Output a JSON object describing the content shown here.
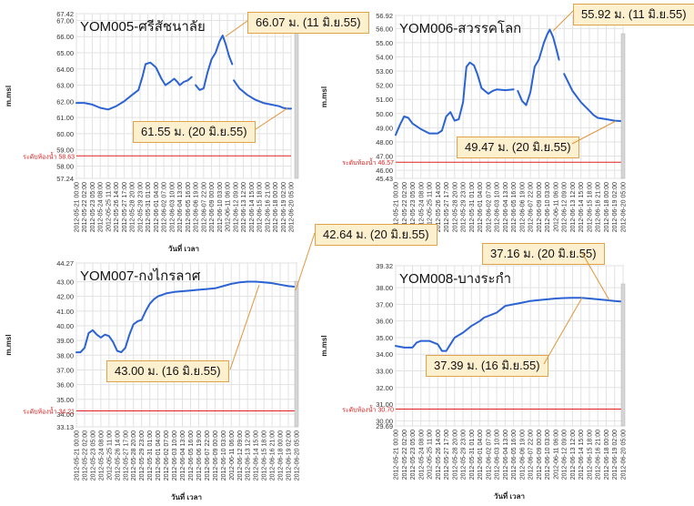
{
  "chart_data": [
    {
      "type": "line",
      "title": "YOM005-ศรีสัชนาลัย",
      "xlabel": "วันที่ เวลา",
      "ylabel": "m.msl",
      "ylim": [
        57.24,
        67.42
      ],
      "yticks": [
        "67.42",
        "67.00",
        "66.00",
        "65.00",
        "64.00",
        "63.00",
        "62.00",
        "61.00",
        "60.00",
        "59.00",
        "58.00",
        "57.24"
      ],
      "reference_line": {
        "label": "ระดับท้องน้ำ 58.63",
        "value": 58.63
      },
      "xtick_labels": [
        "2012-05-21 00:00",
        "2012-05-22 02:00",
        "2012-05-23 05:00",
        "2012-05-24 08:00",
        "2012-05-25 11:00",
        "2012-05-26 14:00",
        "2012-05-27 17:00",
        "2012-05-28 20:00",
        "2012-05-29 23:00",
        "2012-05-31 01:00",
        "2012-06-01 04:00",
        "2012-06-02 07:00",
        "2012-06-03 10:00",
        "2012-06-04 13:00",
        "2012-06-05 16:00",
        "2012-06-06 19:00",
        "2012-06-07 22:00",
        "2012-06-09 00:00",
        "2012-06-10 03:00",
        "2012-06-11 06:00",
        "2012-06-12 09:00",
        "2012-06-13 12:00",
        "2012-06-14 15:00",
        "2012-06-15 18:00",
        "2012-06-16 21:00",
        "2012-06-18 00:00",
        "2012-06-19 02:00",
        "2012-06-20 05:00"
      ],
      "series": [
        {
          "color": "#2b63d4",
          "segments": [
            [
              [
                0,
                61.9
              ],
              [
                1,
                61.9
              ],
              [
                2,
                61.8
              ],
              [
                3,
                61.6
              ],
              [
                4,
                61.5
              ],
              [
                5,
                61.7
              ],
              [
                6,
                62.0
              ],
              [
                7,
                62.4
              ],
              [
                7.8,
                62.7
              ],
              [
                8.3,
                63.5
              ],
              [
                8.7,
                64.3
              ],
              [
                9.3,
                64.4
              ],
              [
                10,
                64.1
              ],
              [
                10.7,
                63.4
              ],
              [
                11.2,
                63.0
              ],
              [
                11.8,
                63.2
              ],
              [
                12.3,
                63.4
              ],
              [
                12.7,
                63.2
              ],
              [
                13,
                63.0
              ],
              [
                13.5,
                63.2
              ],
              [
                14,
                63.3
              ],
              [
                14.5,
                63.5
              ]
            ],
            [
              [
                15,
                63.0
              ],
              [
                15.5,
                62.7
              ],
              [
                16,
                62.8
              ],
              [
                16.5,
                63.8
              ],
              [
                17,
                64.6
              ],
              [
                17.5,
                65.0
              ],
              [
                18,
                65.7
              ],
              [
                18.4,
                66.07
              ],
              [
                18.8,
                65.5
              ],
              [
                19.2,
                64.8
              ],
              [
                19.6,
                64.3
              ]
            ],
            [
              [
                19.8,
                63.3
              ],
              [
                20.5,
                62.8
              ],
              [
                21.5,
                62.4
              ],
              [
                22.5,
                62.1
              ],
              [
                23.5,
                61.9
              ],
              [
                24.5,
                61.8
              ],
              [
                25.5,
                61.7
              ],
              [
                26,
                61.6
              ],
              [
                26.5,
                61.55
              ],
              [
                27,
                61.55
              ]
            ]
          ]
        }
      ],
      "annotations": [
        {
          "text": "66.07 ม. (11 มิ.ย.55)"
        },
        {
          "text": "61.55 ม. (20 มิ.ย.55)"
        }
      ]
    },
    {
      "type": "line",
      "title": "YOM006-สวรรคโลก",
      "xlabel": "",
      "ylabel": "m.msl",
      "ylim": [
        45.43,
        56.92
      ],
      "yticks": [
        "56.92",
        "56.00",
        "55.00",
        "54.00",
        "53.00",
        "52.00",
        "51.00",
        "50.00",
        "49.00",
        "48.00",
        "47.00",
        "46.00",
        "45.43"
      ],
      "reference_line": {
        "label": "ระดับท้องน้ำ 46.57",
        "value": 46.57
      },
      "xtick_labels": [
        "2012-05-21 00:00",
        "2012-05-22 02:00",
        "2012-05-23 05:00",
        "2012-05-24 08:00",
        "2012-05-25 11:00",
        "2012-05-26 14:00",
        "2012-05-27 17:00",
        "2012-05-28 20:00",
        "2012-05-29 23:00",
        "2012-05-31 01:00",
        "2012-06-01 04:00",
        "2012-06-02 07:00",
        "2012-06-03 10:00",
        "2012-06-04 13:00",
        "2012-06-05 16:00",
        "2012-06-06 19:00",
        "2012-06-07 22:00",
        "2012-06-09 00:00",
        "2012-06-10 03:00",
        "2012-06-11 06:00",
        "2012-06-12 09:00",
        "2012-06-13 12:00",
        "2012-06-14 15:00",
        "2012-06-15 18:00",
        "2012-06-16 21:00",
        "2012-06-18 00:00",
        "2012-06-19 02:00",
        "2012-06-20 05:00"
      ],
      "series": [
        {
          "color": "#2b63d4",
          "segments": [
            [
              [
                0,
                48.5
              ],
              [
                0.5,
                49.2
              ],
              [
                1,
                49.8
              ],
              [
                1.5,
                49.7
              ],
              [
                2,
                49.3
              ],
              [
                3,
                48.9
              ],
              [
                4,
                48.6
              ],
              [
                5,
                48.6
              ],
              [
                5.5,
                48.8
              ],
              [
                6,
                49.8
              ],
              [
                6.5,
                50.1
              ],
              [
                7,
                49.5
              ],
              [
                7.5,
                49.6
              ],
              [
                8,
                50.8
              ],
              [
                8.4,
                53.3
              ],
              [
                8.8,
                53.6
              ],
              [
                9.3,
                53.4
              ],
              [
                9.7,
                52.8
              ],
              [
                10.2,
                51.8
              ],
              [
                11,
                51.4
              ],
              [
                11.5,
                51.6
              ],
              [
                12,
                51.7
              ],
              [
                13,
                51.65
              ],
              [
                14,
                51.7
              ]
            ],
            [
              [
                14.5,
                51.6
              ],
              [
                15,
                50.9
              ],
              [
                15.5,
                50.6
              ],
              [
                16,
                51.5
              ],
              [
                16.5,
                53.3
              ],
              [
                17,
                53.8
              ],
              [
                17.6,
                55.0
              ],
              [
                18,
                55.6
              ],
              [
                18.3,
                55.92
              ],
              [
                18.7,
                55.4
              ],
              [
                19.1,
                54.5
              ],
              [
                19.4,
                53.8
              ]
            ],
            [
              [
                20,
                52.8
              ],
              [
                20.5,
                52.2
              ],
              [
                21,
                51.6
              ],
              [
                22,
                50.8
              ],
              [
                23,
                50.2
              ],
              [
                23.5,
                49.9
              ],
              [
                24,
                49.7
              ],
              [
                25,
                49.6
              ],
              [
                26,
                49.5
              ],
              [
                27,
                49.47
              ]
            ]
          ]
        }
      ],
      "annotations": [
        {
          "text": "55.92 ม. (11 มิ.ย.55)"
        },
        {
          "text": "49.47 ม. (20 มิ.ย.55)"
        }
      ]
    },
    {
      "type": "line",
      "title": "YOM007-กงไกรลาศ",
      "xlabel": "วันที่ เวลา",
      "ylabel": "m.msl",
      "ylim": [
        33.13,
        44.27
      ],
      "yticks": [
        "44.27",
        "43.00",
        "42.00",
        "41.00",
        "40.00",
        "39.00",
        "38.00",
        "37.00",
        "36.00",
        "35.00",
        "34.00",
        "33.13"
      ],
      "reference_line": {
        "label": "ระดับท้องน้ำ 34.21",
        "value": 34.21
      },
      "xtick_labels": [
        "2012-05-21 00:00",
        "2012-05-22 02:00",
        "2012-05-23 05:00",
        "2012-05-24 08:00",
        "2012-05-25 11:00",
        "2012-05-26 14:00",
        "2012-05-27 17:00",
        "2012-05-28 20:00",
        "2012-05-29 23:00",
        "2012-05-31 01:00",
        "2012-06-01 04:00",
        "2012-06-02 07:00",
        "2012-06-03 10:00",
        "2012-06-04 13:00",
        "2012-06-05 16:00",
        "2012-06-06 19:00",
        "2012-06-07 22:00",
        "2012-06-09 00:00",
        "2012-06-10 03:00",
        "2012-06-11 06:00",
        "2012-06-12 09:00",
        "2012-06-13 12:00",
        "2012-06-14 15:00",
        "2012-06-15 18:00",
        "2012-06-16 21:00",
        "2012-06-18 00:00",
        "2012-06-19 02:00",
        "2012-06-20 05:00"
      ],
      "series": [
        {
          "color": "#2b63d4",
          "segments": [
            [
              [
                0,
                38.2
              ],
              [
                0.5,
                38.2
              ],
              [
                1,
                38.5
              ],
              [
                1.5,
                39.5
              ],
              [
                2,
                39.7
              ],
              [
                2.5,
                39.4
              ],
              [
                3,
                39.2
              ],
              [
                3.5,
                39.4
              ],
              [
                4,
                39.3
              ],
              [
                4.5,
                38.9
              ],
              [
                5,
                38.3
              ],
              [
                5.5,
                38.2
              ],
              [
                6,
                38.5
              ],
              [
                6.5,
                39.4
              ],
              [
                7,
                40.1
              ],
              [
                7.5,
                40.3
              ],
              [
                8,
                40.4
              ],
              [
                8.5,
                41.0
              ],
              [
                9,
                41.5
              ],
              [
                9.5,
                41.8
              ],
              [
                10,
                42.0
              ],
              [
                11,
                42.2
              ],
              [
                12,
                42.3
              ],
              [
                13,
                42.35
              ],
              [
                14,
                42.4
              ],
              [
                15,
                42.45
              ],
              [
                16,
                42.5
              ],
              [
                17,
                42.55
              ],
              [
                18,
                42.7
              ],
              [
                19,
                42.85
              ],
              [
                20,
                42.95
              ],
              [
                21,
                43.0
              ],
              [
                22,
                43.0
              ],
              [
                23,
                42.95
              ],
              [
                24,
                42.9
              ],
              [
                25,
                42.8
              ],
              [
                26,
                42.7
              ],
              [
                27,
                42.64
              ]
            ]
          ]
        }
      ],
      "annotations": [
        {
          "text": "42.64 ม. (20 มิ.ย.55)"
        },
        {
          "text": "43.00 ม. (16 มิ.ย.55)"
        }
      ]
    },
    {
      "type": "line",
      "title": "YOM008-บางระกำ",
      "xlabel": "วันที่ เวลา",
      "ylabel": "m.msl",
      "ylim": [
        29.69,
        39.32
      ],
      "yticks": [
        "39.32",
        "38.00",
        "37.00",
        "36.00",
        "35.00",
        "34.00",
        "33.00",
        "32.00",
        "31.00",
        "30.00",
        "29.69"
      ],
      "reference_line": {
        "label": "ระดับท้องน้ำ 30.70",
        "value": 30.7
      },
      "xtick_labels": [
        "2012-05-21 00:00",
        "2012-05-22 02:00",
        "2012-05-23 05:00",
        "2012-05-24 08:00",
        "2012-05-25 11:00",
        "2012-05-26 14:00",
        "2012-05-27 17:00",
        "2012-05-28 20:00",
        "2012-05-29 23:00",
        "2012-05-31 01:00",
        "2012-06-01 04:00",
        "2012-06-02 07:00",
        "2012-06-03 10:00",
        "2012-06-04 13:00",
        "2012-06-05 16:00",
        "2012-06-06 19:00",
        "2012-06-07 22:00",
        "2012-06-09 00:00",
        "2012-06-10 03:00",
        "2012-06-11 06:00",
        "2012-06-12 09:00",
        "2012-06-13 12:00",
        "2012-06-14 15:00",
        "2012-06-15 18:00",
        "2012-06-16 21:00",
        "2012-06-18 00:00",
        "2012-06-19 02:00",
        "2012-06-20 05:00"
      ],
      "series": [
        {
          "color": "#2b63d4",
          "segments": [
            [
              [
                0,
                34.5
              ],
              [
                1,
                34.4
              ],
              [
                2,
                34.4
              ],
              [
                2.5,
                34.7
              ],
              [
                3,
                34.8
              ],
              [
                4,
                34.8
              ],
              [
                5,
                34.6
              ],
              [
                5.5,
                34.2
              ],
              [
                6,
                34.2
              ],
              [
                6.5,
                34.6
              ],
              [
                7,
                35.0
              ],
              [
                8,
                35.3
              ],
              [
                9,
                35.7
              ],
              [
                10,
                36.0
              ],
              [
                10.5,
                36.2
              ],
              [
                11,
                36.3
              ],
              [
                12,
                36.5
              ],
              [
                12.5,
                36.7
              ],
              [
                13,
                36.9
              ],
              [
                14,
                37.0
              ],
              [
                15,
                37.1
              ],
              [
                16,
                37.2
              ],
              [
                17,
                37.25
              ],
              [
                18,
                37.3
              ],
              [
                19,
                37.35
              ],
              [
                20,
                37.38
              ],
              [
                21,
                37.39
              ],
              [
                22,
                37.39
              ],
              [
                23,
                37.35
              ],
              [
                24,
                37.3
              ],
              [
                25,
                37.25
              ],
              [
                26,
                37.2
              ],
              [
                27,
                37.16
              ]
            ]
          ]
        }
      ],
      "annotations": [
        {
          "text": "37.16 ม. (20 มิ.ย.55)"
        },
        {
          "text": "37.39 ม. (16 มิ.ย.55)"
        }
      ]
    }
  ]
}
